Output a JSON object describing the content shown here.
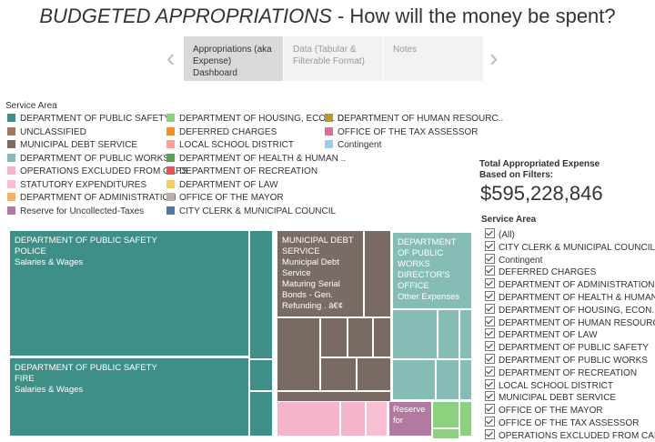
{
  "header": {
    "line1_title": "BUDGETED APPROPRIATIONS",
    "line1_rest": " - How will the money be spent?"
  },
  "nav": {
    "prev_icon": "chevron-left-icon",
    "next_icon": "chevron-right-icon",
    "tabs": [
      {
        "label": "Appropriations (aka Expense) Dashboard",
        "active": true
      },
      {
        "label": "Data (Tabular & Filterable Format)",
        "active": false
      },
      {
        "label": "Notes",
        "active": false
      }
    ]
  },
  "legend": {
    "title": "Service Area",
    "items": [
      {
        "label": "DEPARTMENT OF PUBLIC SAFETY",
        "color": "#3f8f89"
      },
      {
        "label": "UNCLASSIFIED",
        "color": "#9c7a60"
      },
      {
        "label": "MUNICIPAL DEBT SERVICE",
        "color": "#7a6b64"
      },
      {
        "label": "DEPARTMENT OF PUBLIC WORKS",
        "color": "#86bcb6"
      },
      {
        "label": "OPERATIONS EXCLUDED FROM CAPS",
        "color": "#f6b5cc"
      },
      {
        "label": "STATUTORY EXPENDITURES",
        "color": "#fabfd2"
      },
      {
        "label": "DEPARTMENT OF ADMINISTRATION",
        "color": "#f1b26b"
      },
      {
        "label": "Reserve for Uncollected-Taxes",
        "color": "#b07aa1"
      },
      {
        "label": "DEPARTMENT OF HOUSING, ECON. D..",
        "color": "#8cd17d"
      },
      {
        "label": "DEFERRED CHARGES",
        "color": "#f28e2b"
      },
      {
        "label": "LOCAL SCHOOL DISTRICT",
        "color": "#ff9d9a"
      },
      {
        "label": "DEPARTMENT OF HEALTH & HUMAN ..",
        "color": "#59a14f"
      },
      {
        "label": "DEPARTMENT OF RECREATION",
        "color": "#e15759"
      },
      {
        "label": "DEPARTMENT OF LAW",
        "color": "#f1ce63"
      },
      {
        "label": "OFFICE OF THE MAYOR",
        "color": "#bab0ac"
      },
      {
        "label": "CITY CLERK & MUNICIPAL COUNCIL",
        "color": "#4e79a7"
      },
      {
        "label": "DEPARTMENT OF HUMAN RESOURC..",
        "color": "#b6992d"
      },
      {
        "label": "OFFICE OF THE TAX ASSESSOR",
        "color": "#d37295"
      },
      {
        "label": "Contingent",
        "color": "#a0cbe8"
      }
    ]
  },
  "summary": {
    "label": "Total Appropriated Expense Based on Filters:",
    "value": "$595,228,846"
  },
  "filter": {
    "title": "Service Area",
    "items": [
      "(All)",
      "CITY CLERK & MUNICIPAL COUNCIL",
      "Contingent",
      "DEFERRED CHARGES",
      "DEPARTMENT OF ADMINISTRATION",
      "DEPARTMENT OF HEALTH & HUMAN SER..",
      "DEPARTMENT OF HOUSING, ECON. DEV. ..",
      "DEPARTMENT OF HUMAN RESOURCES",
      "DEPARTMENT OF LAW",
      "DEPARTMENT OF PUBLIC SAFETY",
      "DEPARTMENT OF PUBLIC WORKS",
      "DEPARTMENT OF RECREATION",
      "LOCAL SCHOOL DISTRICT",
      "MUNICIPAL DEBT SERVICE",
      "OFFICE OF THE MAYOR",
      "OFFICE OF THE TAX ASSESSOR",
      "OPERATIONS EXCLUDED FROM CAPS"
    ]
  },
  "treemap": {
    "tile_police": [
      "DEPARTMENT OF PUBLIC SAFETY",
      "POLICE",
      "Salaries & Wages"
    ],
    "tile_fire": [
      "DEPARTMENT OF PUBLIC SAFETY",
      "FIRE",
      "Salaries & Wages"
    ],
    "tile_debt": [
      "MUNICIPAL DEBT SERVICE",
      "Municipal Debt Service",
      "Maturing Serial Bonds - Gen. Refunding . â€¢"
    ],
    "tile_publicworks": [
      "DEPARTMENT OF PUBLIC WORKS DIRECTOR'S OFFICE",
      "Other Expenses"
    ],
    "tile_reserve": [
      "Reserve for"
    ]
  }
}
